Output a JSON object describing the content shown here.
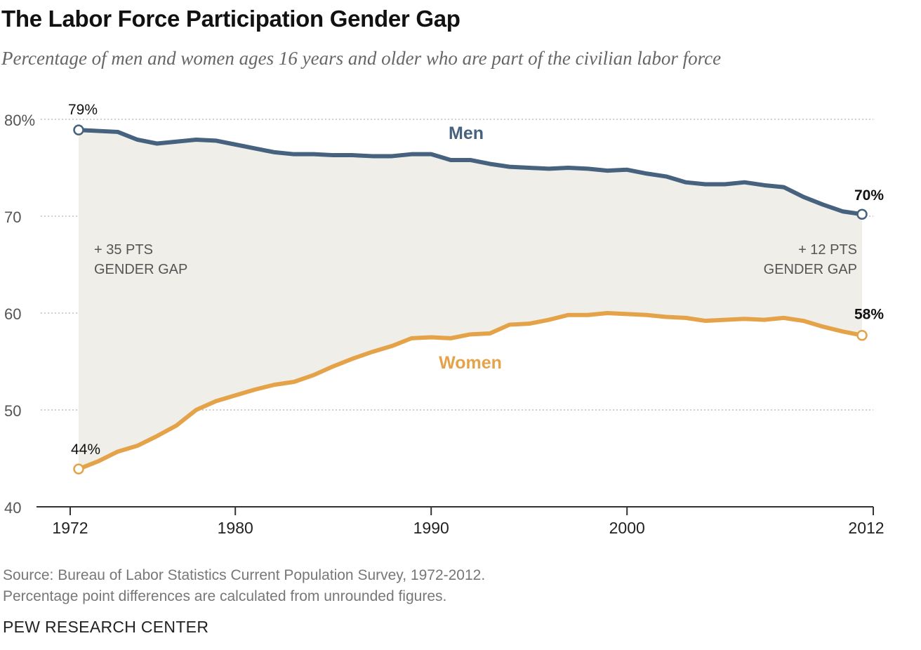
{
  "header": {
    "title": "The Labor Force Participation Gender Gap",
    "subtitle": "Percentage of men and women ages 16 years and older who are part of the civilian labor force"
  },
  "footer": {
    "source": "Source: Bureau of Labor Statistics Current Population Survey, 1972-2012.",
    "note": "Percentage point differences are calculated from unrounded figures.",
    "org": "PEW RESEARCH CENTER"
  },
  "colors": {
    "men": "#46627f",
    "women": "#e5a349",
    "gap_fill": "#efeee8",
    "grid": "#b5b5b5",
    "axis": "#333333"
  },
  "chart_data": {
    "type": "line",
    "title": "The Labor Force Participation Gender Gap",
    "subtitle": "Percentage of men and women ages 16 years and older who are part of the civilian labor force",
    "x": [
      1972,
      1973,
      1974,
      1975,
      1976,
      1977,
      1978,
      1979,
      1980,
      1981,
      1982,
      1983,
      1984,
      1985,
      1986,
      1987,
      1988,
      1989,
      1990,
      1991,
      1992,
      1993,
      1994,
      1995,
      1996,
      1997,
      1998,
      1999,
      2000,
      2001,
      2002,
      2003,
      2004,
      2005,
      2006,
      2007,
      2008,
      2009,
      2010,
      2011,
      2012
    ],
    "series": [
      {
        "name": "Men",
        "values": [
          78.9,
          78.8,
          78.7,
          77.9,
          77.5,
          77.7,
          77.9,
          77.8,
          77.4,
          77.0,
          76.6,
          76.4,
          76.4,
          76.3,
          76.3,
          76.2,
          76.2,
          76.4,
          76.4,
          75.8,
          75.8,
          75.4,
          75.1,
          75.0,
          74.9,
          75.0,
          74.9,
          74.7,
          74.8,
          74.4,
          74.1,
          73.5,
          73.3,
          73.3,
          73.5,
          73.2,
          73.0,
          72.0,
          71.2,
          70.5,
          70.2
        ]
      },
      {
        "name": "Women",
        "values": [
          43.9,
          44.7,
          45.7,
          46.3,
          47.3,
          48.4,
          50.0,
          50.9,
          51.5,
          52.1,
          52.6,
          52.9,
          53.6,
          54.5,
          55.3,
          56.0,
          56.6,
          57.4,
          57.5,
          57.4,
          57.8,
          57.9,
          58.8,
          58.9,
          59.3,
          59.8,
          59.8,
          60.0,
          59.9,
          59.8,
          59.6,
          59.5,
          59.2,
          59.3,
          59.4,
          59.3,
          59.5,
          59.2,
          58.6,
          58.1,
          57.7
        ]
      }
    ],
    "xticks": [
      "1972",
      "1980",
      "1990",
      "2000",
      "2012"
    ],
    "yticks": [
      "80%",
      "70",
      "60",
      "50",
      "40"
    ],
    "ylim": [
      40,
      80
    ],
    "xlim": [
      1972,
      2012
    ],
    "grid": true,
    "series_labels": {
      "men": "Men",
      "women": "Women"
    },
    "endpoint_labels": {
      "men_start": "79%",
      "men_end": "70%",
      "women_start": "44%",
      "women_end": "58%"
    },
    "annotations": {
      "gap_start_line1": "+ 35 PTS",
      "gap_start_line2": "GENDER GAP",
      "gap_end_line1": "+ 12 PTS",
      "gap_end_line2": "GENDER GAP"
    }
  }
}
